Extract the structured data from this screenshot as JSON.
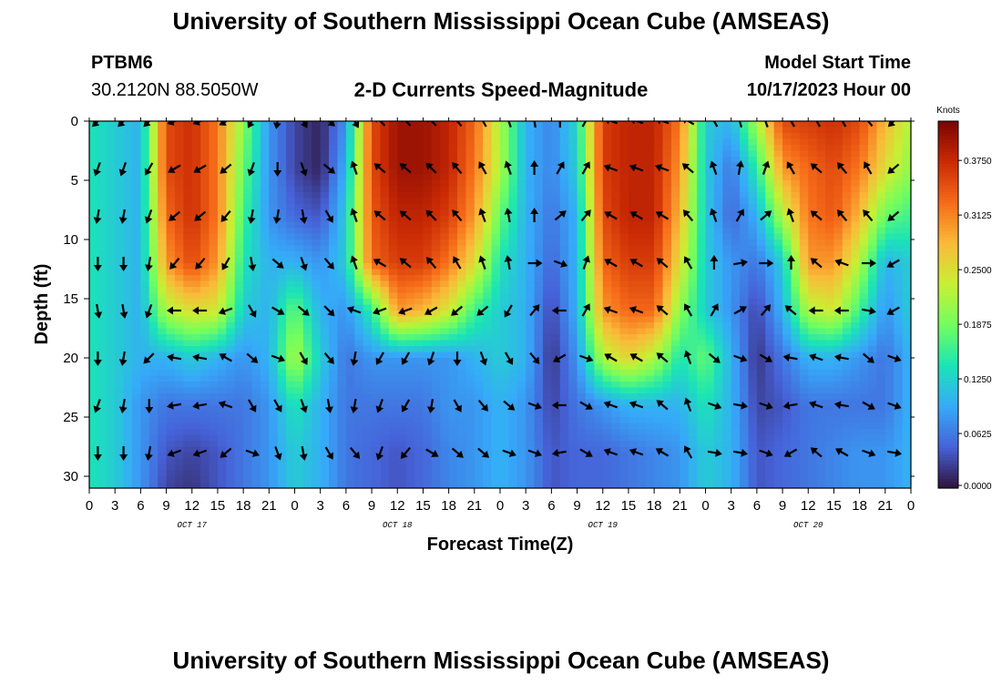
{
  "header": {
    "title": "University of Southern Mississippi Ocean Cube (AMSEAS)",
    "station": "PTBM6",
    "location": "30.2120N  88.5050W",
    "subtitle": "2-D Currents Speed-Magnitude",
    "model_start_label": "Model Start Time",
    "model_start_value": "10/17/2023 Hour 00"
  },
  "footer": {
    "title": "University of Southern Mississippi Ocean Cube (AMSEAS)"
  },
  "chart_data": {
    "type": "heatmap",
    "title": "2-D Currents Speed-Magnitude",
    "xlabel": "Forecast Time(Z)",
    "ylabel": "Depth (ft)",
    "x_hours_range": [
      0,
      96
    ],
    "x_tick_labels": [
      "0",
      "3",
      "6",
      "9",
      "12",
      "15",
      "18",
      "21",
      "0",
      "3",
      "6",
      "9",
      "12",
      "15",
      "18",
      "21",
      "0",
      "3",
      "6",
      "9",
      "12",
      "15",
      "18",
      "21",
      "0",
      "3",
      "6",
      "9",
      "12",
      "15",
      "18",
      "21",
      "0"
    ],
    "day_labels": [
      {
        "label": "OCT 17",
        "hour": 12
      },
      {
        "label": "OCT 18",
        "hour": 36
      },
      {
        "label": "OCT 19",
        "hour": 60
      },
      {
        "label": "OCT 20",
        "hour": 84
      }
    ],
    "ylim": [
      31,
      0
    ],
    "y_ticks": [
      0,
      5,
      10,
      15,
      20,
      25,
      30
    ],
    "colorbar": {
      "label": "Knots",
      "range": [
        0,
        0.42
      ],
      "ticks": [
        "0.0000",
        "0.0625",
        "0.1250",
        "0.1875",
        "0.2500",
        "0.3125",
        "0.3750"
      ],
      "colors": [
        "#30123b",
        "#4662d8",
        "#36aaf9",
        "#1ae4b6",
        "#72fe5e",
        "#c8ef34",
        "#faba39",
        "#f66b19",
        "#ca2a04",
        "#7a0403"
      ]
    },
    "speed_grid": {
      "hours": [
        0,
        3,
        6,
        9,
        12,
        15,
        18,
        21,
        24,
        27,
        30,
        33,
        36,
        39,
        42,
        45,
        48,
        51,
        54,
        57,
        60,
        63,
        66,
        69,
        72,
        75,
        78,
        81,
        84,
        87,
        90,
        93,
        96
      ],
      "depths": [
        0,
        4,
        8,
        12,
        16,
        20,
        24,
        28,
        31
      ],
      "rows": [
        [
          0.14,
          0.12,
          0.1,
          0.35,
          0.37,
          0.32,
          0.2,
          0.08,
          0.03,
          0.01,
          0.08,
          0.35,
          0.4,
          0.4,
          0.38,
          0.33,
          0.22,
          0.1,
          0.07,
          0.13,
          0.36,
          0.38,
          0.38,
          0.32,
          0.12,
          0.1,
          0.22,
          0.35,
          0.36,
          0.37,
          0.35,
          0.28,
          0.22
        ],
        [
          0.14,
          0.12,
          0.1,
          0.35,
          0.37,
          0.32,
          0.18,
          0.08,
          0.03,
          0.01,
          0.1,
          0.35,
          0.4,
          0.4,
          0.38,
          0.32,
          0.22,
          0.1,
          0.07,
          0.12,
          0.36,
          0.38,
          0.38,
          0.3,
          0.12,
          0.06,
          0.15,
          0.3,
          0.33,
          0.35,
          0.32,
          0.25,
          0.2
        ],
        [
          0.14,
          0.12,
          0.1,
          0.33,
          0.37,
          0.32,
          0.16,
          0.08,
          0.05,
          0.04,
          0.12,
          0.34,
          0.38,
          0.38,
          0.36,
          0.3,
          0.18,
          0.1,
          0.06,
          0.1,
          0.35,
          0.38,
          0.38,
          0.28,
          0.12,
          0.05,
          0.1,
          0.22,
          0.32,
          0.34,
          0.28,
          0.18,
          0.16
        ],
        [
          0.14,
          0.12,
          0.1,
          0.3,
          0.35,
          0.3,
          0.14,
          0.1,
          0.1,
          0.08,
          0.12,
          0.33,
          0.36,
          0.36,
          0.32,
          0.25,
          0.14,
          0.1,
          0.05,
          0.1,
          0.33,
          0.36,
          0.36,
          0.25,
          0.12,
          0.08,
          0.06,
          0.12,
          0.3,
          0.3,
          0.22,
          0.1,
          0.12
        ],
        [
          0.14,
          0.12,
          0.1,
          0.22,
          0.25,
          0.24,
          0.12,
          0.1,
          0.18,
          0.1,
          0.08,
          0.15,
          0.3,
          0.28,
          0.24,
          0.16,
          0.12,
          0.1,
          0.03,
          0.1,
          0.3,
          0.33,
          0.33,
          0.2,
          0.12,
          0.08,
          0.03,
          0.1,
          0.22,
          0.24,
          0.16,
          0.08,
          0.12
        ],
        [
          0.14,
          0.12,
          0.1,
          0.1,
          0.12,
          0.1,
          0.08,
          0.1,
          0.22,
          0.12,
          0.06,
          0.08,
          0.08,
          0.08,
          0.08,
          0.1,
          0.12,
          0.1,
          0.02,
          0.08,
          0.22,
          0.26,
          0.22,
          0.14,
          0.18,
          0.1,
          0.02,
          0.06,
          0.1,
          0.1,
          0.08,
          0.06,
          0.1
        ],
        [
          0.14,
          0.12,
          0.08,
          0.06,
          0.06,
          0.06,
          0.06,
          0.08,
          0.14,
          0.1,
          0.06,
          0.06,
          0.06,
          0.06,
          0.08,
          0.08,
          0.1,
          0.08,
          0.03,
          0.06,
          0.08,
          0.1,
          0.1,
          0.1,
          0.14,
          0.1,
          0.03,
          0.04,
          0.06,
          0.06,
          0.06,
          0.06,
          0.1
        ],
        [
          0.14,
          0.12,
          0.08,
          0.04,
          0.03,
          0.04,
          0.06,
          0.08,
          0.12,
          0.1,
          0.06,
          0.05,
          0.04,
          0.05,
          0.07,
          0.08,
          0.1,
          0.08,
          0.04,
          0.05,
          0.05,
          0.06,
          0.07,
          0.08,
          0.12,
          0.1,
          0.04,
          0.05,
          0.06,
          0.07,
          0.08,
          0.08,
          0.1
        ],
        [
          0.14,
          0.12,
          0.08,
          0.03,
          0.02,
          0.04,
          0.06,
          0.08,
          0.12,
          0.1,
          0.06,
          0.05,
          0.04,
          0.05,
          0.07,
          0.08,
          0.1,
          0.08,
          0.04,
          0.05,
          0.05,
          0.06,
          0.07,
          0.08,
          0.12,
          0.1,
          0.04,
          0.05,
          0.06,
          0.07,
          0.08,
          0.08,
          0.1
        ]
      ]
    },
    "vectors": {
      "hours": [
        1,
        4,
        7,
        10,
        13,
        16,
        19,
        22,
        25,
        28,
        31,
        34,
        37,
        40,
        43,
        46,
        49,
        52,
        55,
        58,
        61,
        64,
        67,
        70,
        73,
        76,
        79,
        82,
        85,
        88,
        91,
        94
      ],
      "depths": [
        0,
        4,
        8,
        12,
        16,
        20,
        24,
        28
      ],
      "directions_deg": [
        [
          135,
          135,
          135,
          160,
          160,
          150,
          120,
          100,
          60,
          40,
          60,
          225,
          225,
          225,
          230,
          240,
          250,
          260,
          270,
          300,
          200,
          200,
          200,
          210,
          240,
          255,
          250,
          240,
          240,
          240,
          230,
          135
        ],
        [
          110,
          110,
          120,
          150,
          150,
          140,
          110,
          90,
          70,
          40,
          250,
          220,
          220,
          225,
          230,
          240,
          250,
          270,
          300,
          300,
          200,
          200,
          200,
          220,
          250,
          280,
          290,
          240,
          220,
          230,
          240,
          140
        ],
        [
          100,
          100,
          110,
          140,
          140,
          130,
          100,
          100,
          80,
          60,
          250,
          220,
          220,
          225,
          230,
          250,
          260,
          270,
          320,
          310,
          210,
          210,
          210,
          230,
          250,
          300,
          320,
          250,
          220,
          230,
          230,
          140
        ],
        [
          90,
          90,
          100,
          130,
          130,
          120,
          80,
          40,
          70,
          50,
          250,
          210,
          220,
          230,
          240,
          250,
          260,
          0,
          20,
          290,
          210,
          210,
          220,
          240,
          270,
          350,
          0,
          270,
          220,
          200,
          0,
          150
        ],
        [
          80,
          80,
          110,
          180,
          180,
          160,
          60,
          30,
          40,
          45,
          200,
          160,
          160,
          150,
          140,
          140,
          120,
          310,
          180,
          300,
          200,
          200,
          220,
          240,
          300,
          330,
          310,
          220,
          180,
          180,
          10,
          150
        ],
        [
          90,
          100,
          135,
          190,
          190,
          210,
          40,
          20,
          60,
          50,
          100,
          120,
          120,
          110,
          90,
          70,
          60,
          50,
          150,
          20,
          210,
          210,
          220,
          250,
          40,
          20,
          30,
          190,
          200,
          190,
          40,
          20
        ],
        [
          110,
          100,
          90,
          170,
          170,
          200,
          60,
          60,
          70,
          80,
          100,
          110,
          120,
          100,
          60,
          50,
          40,
          20,
          180,
          30,
          200,
          200,
          220,
          250,
          20,
          10,
          20,
          170,
          200,
          190,
          30,
          20
        ],
        [
          90,
          90,
          100,
          160,
          160,
          140,
          20,
          70,
          80,
          60,
          50,
          110,
          130,
          30,
          40,
          40,
          20,
          20,
          170,
          30,
          200,
          200,
          210,
          240,
          10,
          10,
          20,
          150,
          220,
          210,
          20,
          10
        ]
      ]
    }
  }
}
